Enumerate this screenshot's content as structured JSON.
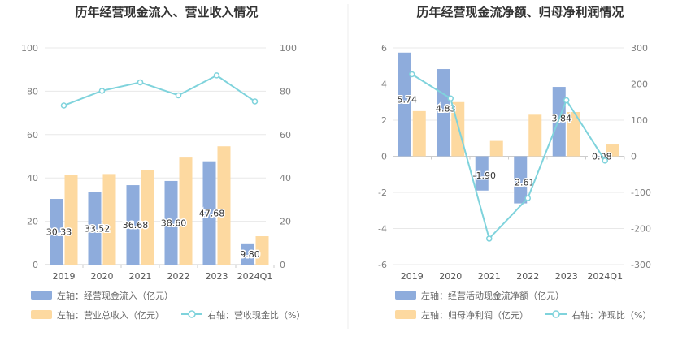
{
  "chart_data": [
    {
      "type": "bar+line",
      "title": "历年经营现金流入、营业收入情况",
      "categories": [
        "2019",
        "2020",
        "2021",
        "2022",
        "2023",
        "2024Q1"
      ],
      "left_axis": {
        "min": 0,
        "max": 100,
        "ticks": [
          0,
          20,
          40,
          60,
          80,
          100
        ]
      },
      "right_axis": {
        "min": 0,
        "max": 100,
        "ticks": [
          0,
          20,
          40,
          60,
          80,
          100
        ]
      },
      "series": [
        {
          "name": "左轴：经营现金流入（亿元）",
          "type": "bar",
          "axis": "left",
          "color": "#8eacdc",
          "values": [
            30.33,
            33.52,
            36.68,
            38.6,
            47.68,
            9.8
          ],
          "labels": [
            "30.33",
            "33.52",
            "36.68",
            "38.60",
            "47.68",
            "9.80"
          ]
        },
        {
          "name": "左轴：营业总收入（亿元）",
          "type": "bar",
          "axis": "left",
          "color": "#fdd9a0",
          "values": [
            41.3,
            41.8,
            43.6,
            49.4,
            54.6,
            13.1
          ]
        },
        {
          "name": "右轴：营收现金比（%）",
          "type": "line",
          "axis": "right",
          "color": "#7fd3dc",
          "values": [
            73.4,
            80.2,
            84.1,
            78.1,
            87.3,
            75.3
          ]
        }
      ]
    },
    {
      "type": "bar+line",
      "title": "历年经营现金流净额、归母净利润情况",
      "categories": [
        "2019",
        "2020",
        "2021",
        "2022",
        "2023",
        "2024Q1"
      ],
      "left_axis": {
        "min": -6,
        "max": 6,
        "ticks": [
          -6,
          -4,
          -2,
          0,
          2,
          4,
          6
        ]
      },
      "right_axis": {
        "min": -300,
        "max": 300,
        "ticks": [
          -300,
          -200,
          -100,
          0,
          100,
          200,
          300
        ]
      },
      "series": [
        {
          "name": "左轴：经营活动现金流净额（亿元）",
          "type": "bar",
          "axis": "left",
          "color": "#8eacdc",
          "values": [
            5.74,
            4.83,
            -1.9,
            -2.61,
            3.84,
            -0.08
          ],
          "labels": [
            "5.74",
            "4.83",
            "-1.90",
            "-2.61",
            "3.84",
            "-0.08"
          ]
        },
        {
          "name": "左轴：归母净利润（亿元）",
          "type": "bar",
          "axis": "left",
          "color": "#fdd9a0",
          "values": [
            2.5,
            3.0,
            0.85,
            2.3,
            2.45,
            0.65
          ]
        },
        {
          "name": "右轴：净现比（%）",
          "type": "line",
          "axis": "right",
          "color": "#7fd3dc",
          "values": [
            227,
            160,
            -228,
            -116,
            155,
            -12
          ]
        }
      ]
    }
  ]
}
